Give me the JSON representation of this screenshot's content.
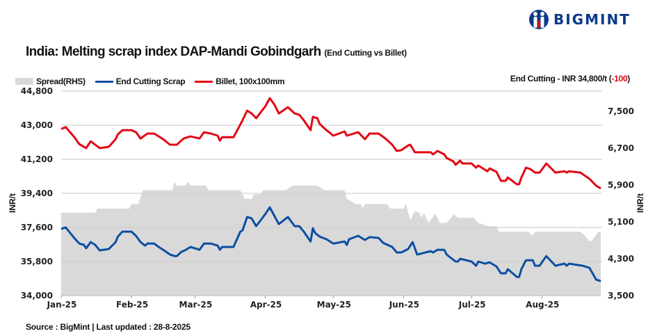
{
  "logo": {
    "text": "BIGMINT",
    "color": "#0b3a8c"
  },
  "source": "Source : BigMint | Last updated : 28-8-2025",
  "chart_data": {
    "type": "line",
    "title": "India: Melting scrap index DAP-Mandi Gobindgarh",
    "subtitle": "(End Cutting vs Billet)",
    "callout": {
      "text": "End Cutting - INR 34,800/t (",
      "change": "-100",
      "close": ")"
    },
    "ylabel": "INR/t",
    "ylabel_right": "INR/t",
    "ylim": [
      34000,
      44800
    ],
    "ylim_right": [
      3500,
      7940
    ],
    "yticks": [
      "34,000",
      "35,800",
      "37,600",
      "39,400",
      "41,200",
      "43,000",
      "44,800"
    ],
    "yticks_values": [
      34000,
      35800,
      37600,
      39400,
      41200,
      43000,
      44800
    ],
    "yticks_right": [
      "3,500",
      "4,300",
      "5,100",
      "5,900",
      "6,700",
      "7,500"
    ],
    "yticks_right_values": [
      3500,
      4300,
      5100,
      5900,
      6700,
      7500
    ],
    "xlim": [
      "2025-01-01",
      "2025-08-27"
    ],
    "xticks": [
      "Jan-25",
      "Feb-25",
      "Mar-25",
      "Apr-25",
      "May-25",
      "Jun-25",
      "Jul-25",
      "Aug-25"
    ],
    "xticks_dates": [
      "2025-01-01",
      "2025-02-01",
      "2025-03-01",
      "2025-04-01",
      "2025-05-01",
      "2025-06-01",
      "2025-07-01",
      "2025-08-01"
    ],
    "grid": "horizontal",
    "legend": "top-left",
    "series": [
      {
        "name": "Spread(RHS)",
        "type": "area",
        "axis": "right",
        "color": "#d9d9d9",
        "x": [
          "2025-01-01",
          "2025-01-16",
          "2025-01-17",
          "2025-01-31",
          "2025-02-01",
          "2025-02-04",
          "2025-02-06",
          "2025-02-19",
          "2025-02-20",
          "2025-02-21",
          "2025-02-25",
          "2025-02-26",
          "2025-02-27",
          "2025-03-06",
          "2025-03-07",
          "2025-03-21",
          "2025-03-23",
          "2025-03-26",
          "2025-03-27",
          "2025-03-30",
          "2025-03-31",
          "2025-04-10",
          "2025-04-13",
          "2025-04-24",
          "2025-04-27",
          "2025-05-06",
          "2025-05-07",
          "2025-05-11",
          "2025-05-13",
          "2025-05-14",
          "2025-05-15",
          "2025-05-25",
          "2025-05-26",
          "2025-06-01",
          "2025-06-02",
          "2025-06-04",
          "2025-06-06",
          "2025-06-08",
          "2025-06-09",
          "2025-06-10",
          "2025-06-12",
          "2025-06-15",
          "2025-06-17",
          "2025-06-20",
          "2025-06-22",
          "2025-06-23",
          "2025-06-25",
          "2025-07-02",
          "2025-07-04",
          "2025-07-08",
          "2025-07-12",
          "2025-07-13",
          "2025-07-26",
          "2025-07-28",
          "2025-07-29",
          "2025-08-18",
          "2025-08-20",
          "2025-08-22",
          "2025-08-23",
          "2025-08-26",
          "2025-08-27"
        ],
        "values": [
          5300,
          5300,
          5390,
          5390,
          5490,
          5490,
          5790,
          5790,
          5975,
          5890,
          5890,
          5975,
          5890,
          5890,
          5790,
          5790,
          5600,
          5600,
          5700,
          5700,
          5790,
          5790,
          5890,
          5890,
          5790,
          5790,
          5600,
          5490,
          5490,
          5400,
          5490,
          5490,
          5390,
          5390,
          5490,
          5140,
          5340,
          5300,
          5190,
          5300,
          5080,
          5280,
          5080,
          5080,
          5190,
          5270,
          5190,
          5190,
          5080,
          5010,
          5010,
          4890,
          4890,
          4800,
          4890,
          4890,
          4800,
          4680,
          4690,
          4890,
          4890
        ]
      },
      {
        "name": "End Cutting Scrap",
        "type": "line",
        "axis": "left",
        "color": "#0b4ea2",
        "x": [
          "2025-01-01",
          "2025-01-03",
          "2025-01-07",
          "2025-01-09",
          "2025-01-11",
          "2025-01-12",
          "2025-01-14",
          "2025-01-16",
          "2025-01-18",
          "2025-01-22",
          "2025-01-25",
          "2025-01-26",
          "2025-01-28",
          "2025-02-01",
          "2025-02-03",
          "2025-02-05",
          "2025-02-07",
          "2025-02-08",
          "2025-02-11",
          "2025-02-13",
          "2025-02-15",
          "2025-02-18",
          "2025-02-20",
          "2025-02-21",
          "2025-02-23",
          "2025-02-25",
          "2025-02-27",
          "2025-03-01",
          "2025-03-03",
          "2025-03-05",
          "2025-03-08",
          "2025-03-11",
          "2025-03-12",
          "2025-03-13",
          "2025-03-18",
          "2025-03-21",
          "2025-03-22",
          "2025-03-24",
          "2025-03-26",
          "2025-03-28",
          "2025-04-01",
          "2025-04-03",
          "2025-04-07",
          "2025-04-11",
          "2025-04-14",
          "2025-04-16",
          "2025-04-18",
          "2025-04-21",
          "2025-04-22",
          "2025-04-23",
          "2025-04-25",
          "2025-04-28",
          "2025-05-01",
          "2025-05-06",
          "2025-05-07",
          "2025-05-08",
          "2025-05-12",
          "2025-05-15",
          "2025-05-17",
          "2025-05-21",
          "2025-05-23",
          "2025-05-27",
          "2025-05-29",
          "2025-05-31",
          "2025-06-03",
          "2025-06-05",
          "2025-06-07",
          "2025-06-13",
          "2025-06-14",
          "2025-06-16",
          "2025-06-19",
          "2025-06-20",
          "2025-06-24",
          "2025-06-25",
          "2025-06-26",
          "2025-07-01",
          "2025-07-03",
          "2025-07-04",
          "2025-07-07",
          "2025-07-09",
          "2025-07-12",
          "2025-07-14",
          "2025-07-16",
          "2025-07-17",
          "2025-07-21",
          "2025-07-22",
          "2025-07-23",
          "2025-07-25",
          "2025-07-28",
          "2025-07-29",
          "2025-07-31",
          "2025-08-03",
          "2025-08-07",
          "2025-08-11",
          "2025-08-12",
          "2025-08-13",
          "2025-08-19",
          "2025-08-22",
          "2025-08-25",
          "2025-08-27"
        ],
        "values": [
          37530,
          37600,
          37010,
          36750,
          36680,
          36500,
          36830,
          36680,
          36390,
          36460,
          36830,
          37120,
          37380,
          37380,
          37160,
          36830,
          36640,
          36750,
          36750,
          36570,
          36420,
          36170,
          36090,
          36090,
          36310,
          36420,
          36570,
          36500,
          36420,
          36750,
          36750,
          36640,
          36420,
          36570,
          36570,
          37380,
          37450,
          38150,
          38080,
          37670,
          38300,
          38660,
          37780,
          38150,
          37670,
          37670,
          37380,
          36860,
          37560,
          37310,
          37120,
          36980,
          36750,
          36860,
          36680,
          36980,
          37160,
          36940,
          37090,
          37050,
          36790,
          36570,
          36280,
          36280,
          36460,
          36830,
          36170,
          36350,
          36280,
          36420,
          36420,
          36170,
          35800,
          35800,
          35950,
          35800,
          35580,
          35800,
          35690,
          35760,
          35540,
          35180,
          35180,
          35400,
          34990,
          34990,
          35400,
          35870,
          35870,
          35580,
          35580,
          36090,
          35580,
          35690,
          35580,
          35690,
          35580,
          35470,
          34840,
          34770
        ]
      },
      {
        "name": "Billet, 100x100mm",
        "type": "line",
        "axis": "left",
        "color": "#e30613",
        "x": [
          "2025-01-01",
          "2025-01-03",
          "2025-01-07",
          "2025-01-09",
          "2025-01-12",
          "2025-01-14",
          "2025-01-18",
          "2025-01-22",
          "2025-01-25",
          "2025-01-26",
          "2025-01-28",
          "2025-02-01",
          "2025-02-03",
          "2025-02-05",
          "2025-02-08",
          "2025-02-11",
          "2025-02-15",
          "2025-02-18",
          "2025-02-21",
          "2025-02-24",
          "2025-02-27",
          "2025-03-03",
          "2025-03-05",
          "2025-03-08",
          "2025-03-11",
          "2025-03-12",
          "2025-03-13",
          "2025-03-18",
          "2025-03-20",
          "2025-03-22",
          "2025-03-24",
          "2025-03-26",
          "2025-03-28",
          "2025-04-01",
          "2025-04-03",
          "2025-04-05",
          "2025-04-07",
          "2025-04-11",
          "2025-04-14",
          "2025-04-16",
          "2025-04-18",
          "2025-04-21",
          "2025-04-22",
          "2025-04-24",
          "2025-04-25",
          "2025-04-28",
          "2025-05-01",
          "2025-05-06",
          "2025-05-07",
          "2025-05-12",
          "2025-05-15",
          "2025-05-17",
          "2025-05-21",
          "2025-05-24",
          "2025-05-27",
          "2025-05-29",
          "2025-05-31",
          "2025-06-03",
          "2025-06-04",
          "2025-06-06",
          "2025-06-13",
          "2025-06-14",
          "2025-06-16",
          "2025-06-19",
          "2025-06-20",
          "2025-06-23",
          "2025-06-24",
          "2025-06-26",
          "2025-06-27",
          "2025-07-01",
          "2025-07-03",
          "2025-07-04",
          "2025-07-08",
          "2025-07-09",
          "2025-07-12",
          "2025-07-14",
          "2025-07-16",
          "2025-07-17",
          "2025-07-21",
          "2025-07-22",
          "2025-07-23",
          "2025-07-25",
          "2025-07-27",
          "2025-07-29",
          "2025-07-31",
          "2025-08-03",
          "2025-08-07",
          "2025-08-11",
          "2025-08-12",
          "2025-08-13",
          "2025-08-18",
          "2025-08-22",
          "2025-08-25",
          "2025-08-27"
        ],
        "values": [
          42800,
          42900,
          42340,
          42000,
          41790,
          42150,
          41790,
          41860,
          42260,
          42520,
          42740,
          42740,
          42630,
          42300,
          42560,
          42560,
          42260,
          41970,
          41970,
          42300,
          42410,
          42300,
          42630,
          42560,
          42450,
          42190,
          42370,
          42370,
          42810,
          43260,
          43770,
          43620,
          43370,
          43990,
          44430,
          44100,
          43620,
          43950,
          43620,
          43550,
          43260,
          42740,
          43440,
          43370,
          43070,
          42740,
          42450,
          42670,
          42450,
          42630,
          42260,
          42560,
          42560,
          42300,
          41970,
          41640,
          41680,
          41930,
          41970,
          41570,
          41570,
          41460,
          41640,
          41460,
          41270,
          41090,
          40910,
          41130,
          40980,
          40980,
          40760,
          40870,
          40570,
          40720,
          40540,
          40060,
          40060,
          40240,
          39880,
          39880,
          40240,
          40760,
          40680,
          40500,
          40500,
          40980,
          40500,
          40570,
          40500,
          40570,
          40500,
          40170,
          39800,
          39660
        ]
      }
    ]
  }
}
